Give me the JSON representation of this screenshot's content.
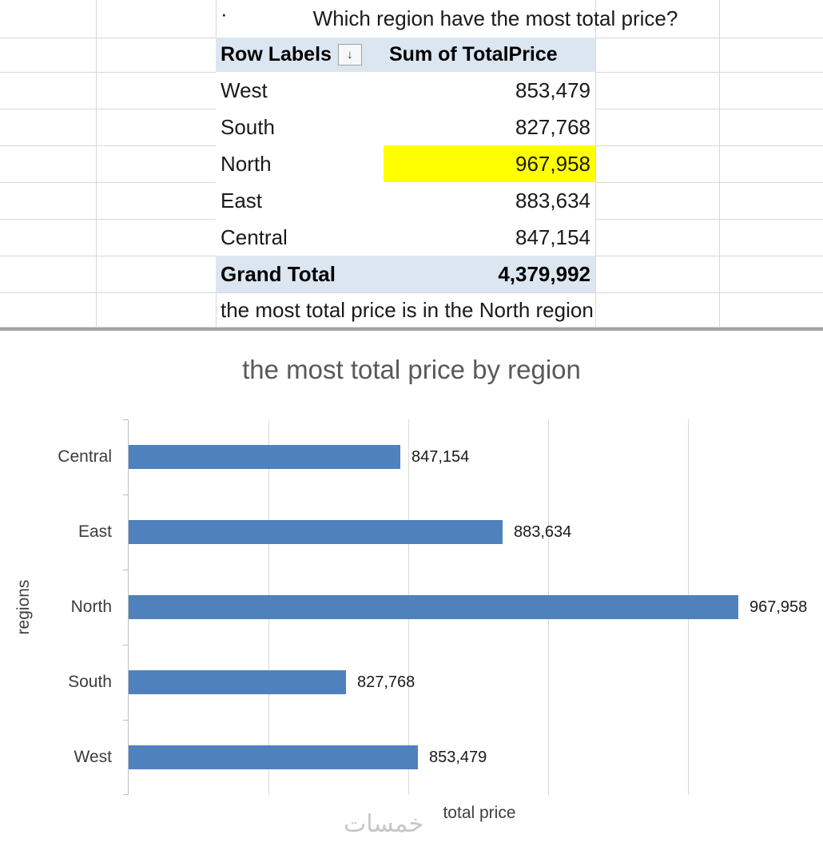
{
  "sheet": {
    "bullet": "·",
    "question": "Which region have the most total price?"
  },
  "pivot": {
    "header": {
      "row_labels": "Row Labels",
      "value_header": "Sum of TotalPrice"
    },
    "sort_icon": "↓",
    "rows": [
      {
        "label": "West",
        "value": "853,479",
        "highlight": false
      },
      {
        "label": "South",
        "value": "827,768",
        "highlight": false
      },
      {
        "label": "North",
        "value": "967,958",
        "highlight": true
      },
      {
        "label": "East",
        "value": "883,634",
        "highlight": false
      },
      {
        "label": "Central",
        "value": "847,154",
        "highlight": false
      }
    ],
    "grand_total": {
      "label": "Grand Total",
      "value": "4,379,992"
    },
    "note": "the most total price is in the North region",
    "header_bg": "#DCE6F1",
    "highlight_color": "#FFFF00"
  },
  "chart_data": {
    "type": "bar",
    "orientation": "horizontal",
    "title": "the most total price by region",
    "categories": [
      "Central",
      "East",
      "North",
      "South",
      "West"
    ],
    "values": [
      847154,
      883634,
      967958,
      827768,
      853479
    ],
    "value_labels": [
      "847,154",
      "883,634",
      "967,958",
      "827,768",
      "853,479"
    ],
    "xlabel": "total price",
    "ylabel": "regions",
    "axis_min": 750000,
    "axis_max": 970000,
    "gridline_step": 50000,
    "grid": true,
    "legend": "none",
    "tick_labels_visible": false,
    "bar_color": "#4F81BD"
  },
  "watermark": {
    "text": "خمسات"
  }
}
